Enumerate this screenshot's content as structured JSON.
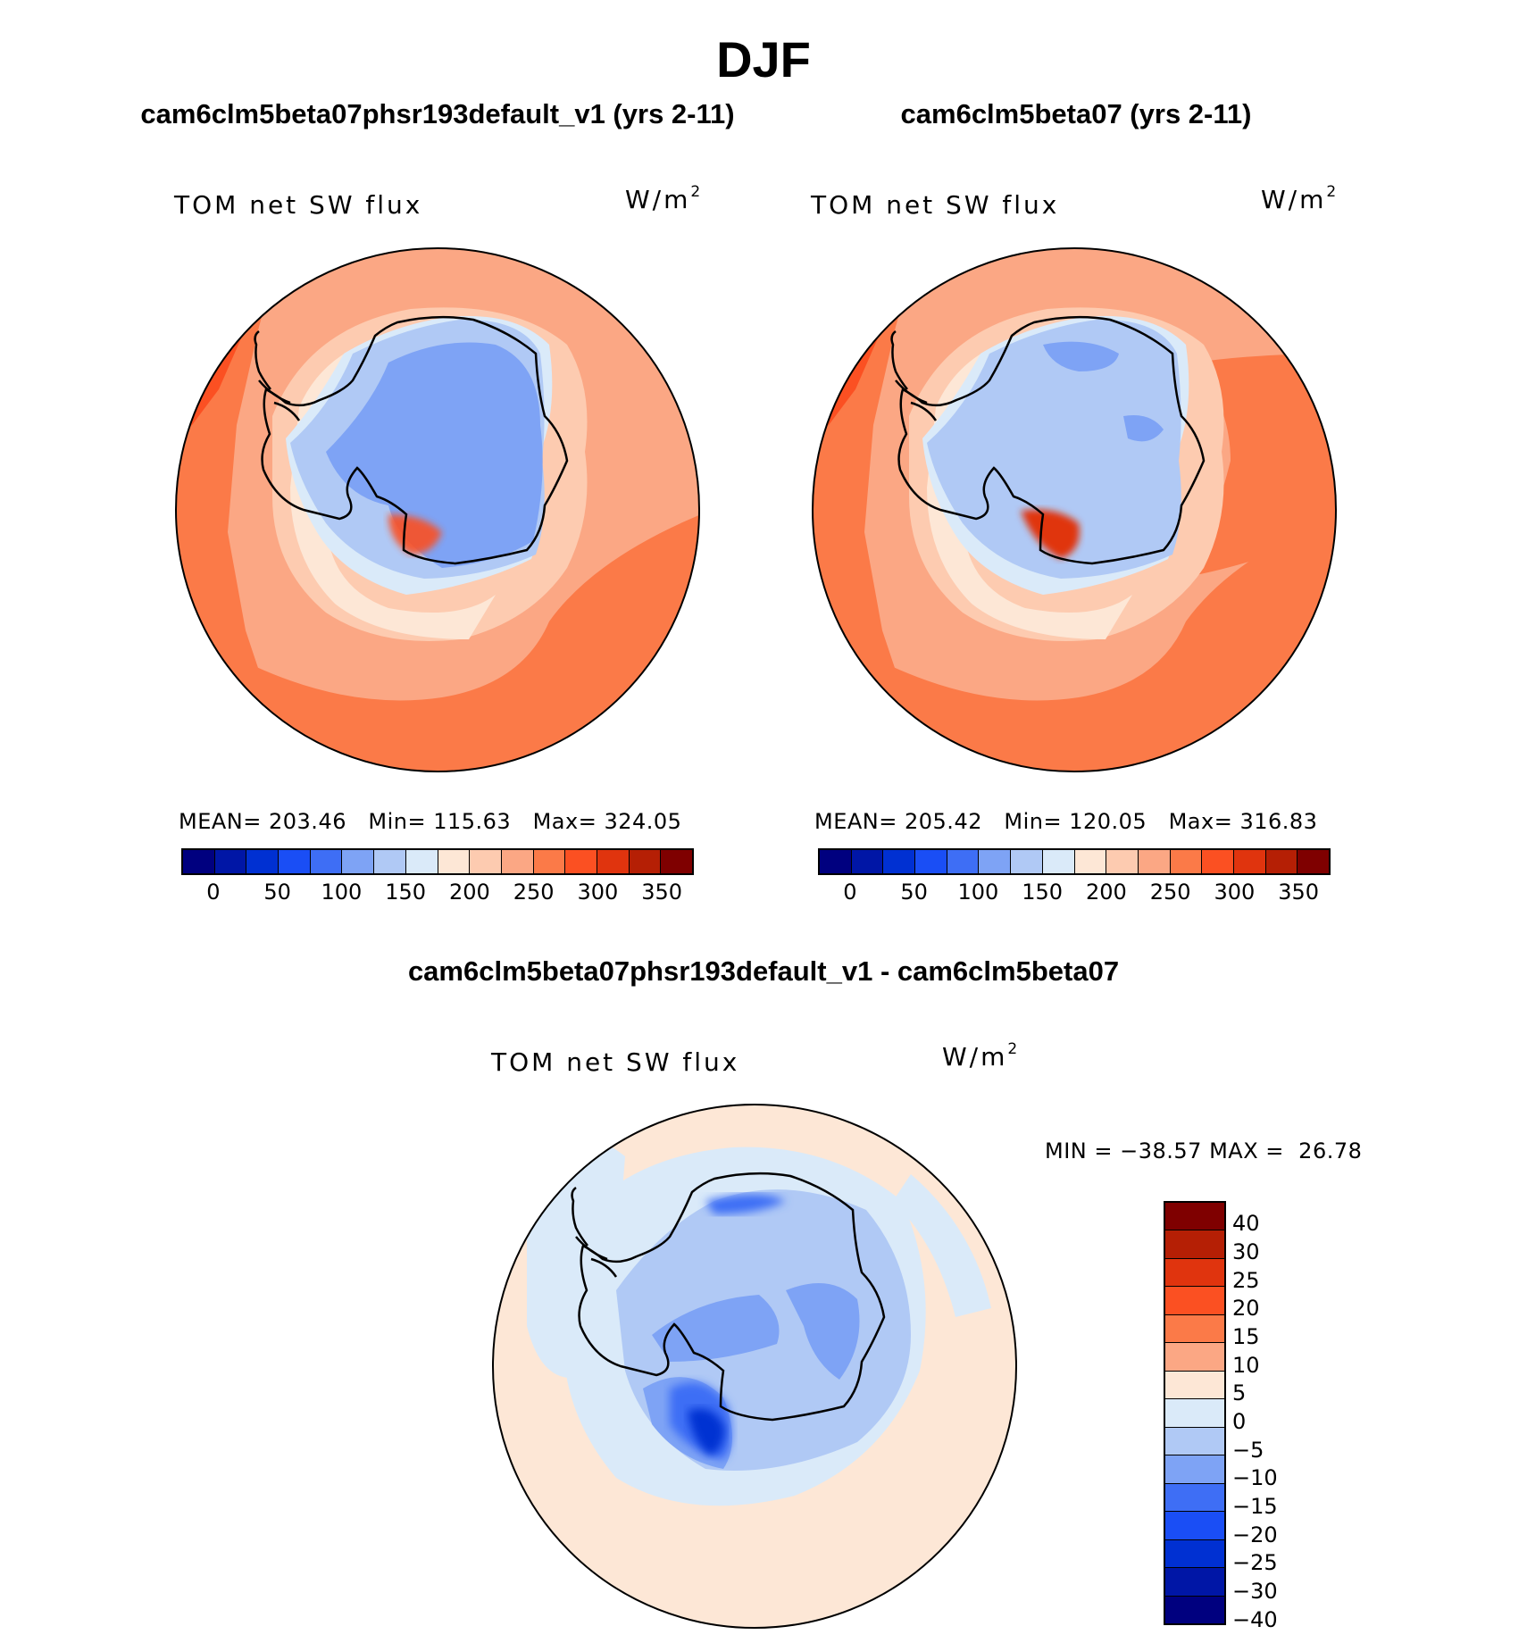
{
  "season": "DJF",
  "panels": [
    {
      "title": "cam6clm5beta07phsr193default_v1 (yrs 2-11)",
      "variable": "TOM net SW flux",
      "units": "W/m",
      "units_exp": "2",
      "stats": {
        "mean_label": "MEAN=",
        "mean": "203.46",
        "min_label": "Min=",
        "min": "115.63",
        "max_label": "Max=",
        "max": "324.05"
      }
    },
    {
      "title": "cam6clm5beta07 (yrs 2-11)",
      "variable": "TOM net SW flux",
      "units": "W/m",
      "units_exp": "2",
      "stats": {
        "mean_label": "MEAN=",
        "mean": "205.42",
        "min_label": "Min=",
        "min": "120.05",
        "max_label": "Max=",
        "max": "316.83"
      }
    }
  ],
  "diff": {
    "title": "cam6clm5beta07phsr193default_v1 - cam6clm5beta07",
    "variable": "TOM net SW flux",
    "units": "W/m",
    "units_exp": "2",
    "min_label": "MIN =",
    "min": "−38.57",
    "max_label": "MAX =",
    "max": "26.78"
  },
  "colorbar_abs": {
    "colors": [
      "#00007f",
      "#0016a6",
      "#0030d2",
      "#1a4ef5",
      "#3e6ef5",
      "#7ea3f5",
      "#b0c9f5",
      "#daeaf9",
      "#fde7d6",
      "#fdcbb0",
      "#fba784",
      "#fb7a48",
      "#fb5022",
      "#e0340e",
      "#b51f05",
      "#7f0000"
    ],
    "ticks": [
      "0",
      "50",
      "100",
      "150",
      "200",
      "250",
      "300",
      "350"
    ]
  },
  "colorbar_diff": {
    "colors": [
      "#7f0000",
      "#b51f05",
      "#e0340e",
      "#fb5022",
      "#fb7a48",
      "#fba784",
      "#fde7d6",
      "#daeaf9",
      "#b0c9f5",
      "#7ea3f5",
      "#3e6ef5",
      "#1a4ef5",
      "#0030d2",
      "#0016a6",
      "#00007f"
    ],
    "ticks": [
      "40",
      "30",
      "25",
      "20",
      "15",
      "10",
      "5",
      "0",
      "−5",
      "−10",
      "−15",
      "−20",
      "−25",
      "−30",
      "−40"
    ]
  },
  "palette": {
    "ocean_warm": "#fb7a48",
    "ocean_mid": "#fba784",
    "ocean_light": "#fdcbb0",
    "ocean_pale": "#fde7d6",
    "ice_pale": "#daeaf9",
    "ice_light": "#b0c9f5",
    "ice_mid": "#7ea3f5",
    "ice_strong": "#3e6ef5",
    "ice_deep": "#1a4ef5",
    "red_strong": "#fb5022",
    "red_deep": "#e0340e"
  }
}
